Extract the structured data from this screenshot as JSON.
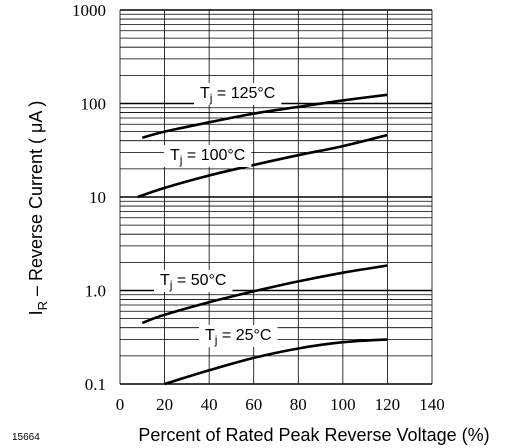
{
  "figure_number": "15664",
  "chart_data": {
    "type": "line",
    "xlabel": "Percent of Rated Peak Reverse Voltage (%)",
    "ylabel_main": "I",
    "ylabel_sub": "R",
    "ylabel_rest": " – Reverse Current ( μA )",
    "x_ticks": [
      0,
      20,
      40,
      60,
      80,
      100,
      120,
      140
    ],
    "x_tick_labels": [
      "0",
      "20",
      "40",
      "60",
      "80",
      "100",
      "120",
      "140"
    ],
    "y_ticks": [
      0.1,
      1,
      10,
      100,
      1000
    ],
    "y_tick_labels": [
      "0.1",
      "1.0",
      "10",
      "100",
      "1000"
    ],
    "xlim": [
      0,
      140
    ],
    "ylim": [
      0.1,
      1000
    ],
    "y_scale": "log",
    "grid": true,
    "series": [
      {
        "name": "125°C",
        "label_sub": "j",
        "label_rest": " = 125°C",
        "x": [
          10,
          20,
          40,
          60,
          80,
          100,
          120
        ],
        "y": [
          43,
          50,
          63,
          78,
          92,
          108,
          124
        ]
      },
      {
        "name": "100°C",
        "label_sub": "j",
        "label_rest": " = 100°C",
        "x": [
          8,
          20,
          40,
          60,
          80,
          100,
          120
        ],
        "y": [
          10,
          12.5,
          17,
          22,
          28,
          35,
          46
        ]
      },
      {
        "name": "50°C",
        "label_sub": "j",
        "label_rest": " = 50°C",
        "x": [
          10,
          20,
          40,
          60,
          80,
          100,
          120
        ],
        "y": [
          0.45,
          0.55,
          0.75,
          0.98,
          1.25,
          1.55,
          1.85
        ]
      },
      {
        "name": "25°C",
        "label_sub": "j",
        "label_rest": " = 25°C",
        "x": [
          20,
          40,
          60,
          80,
          100,
          120
        ],
        "y": [
          0.1,
          0.14,
          0.19,
          0.24,
          0.28,
          0.3
        ]
      }
    ]
  }
}
